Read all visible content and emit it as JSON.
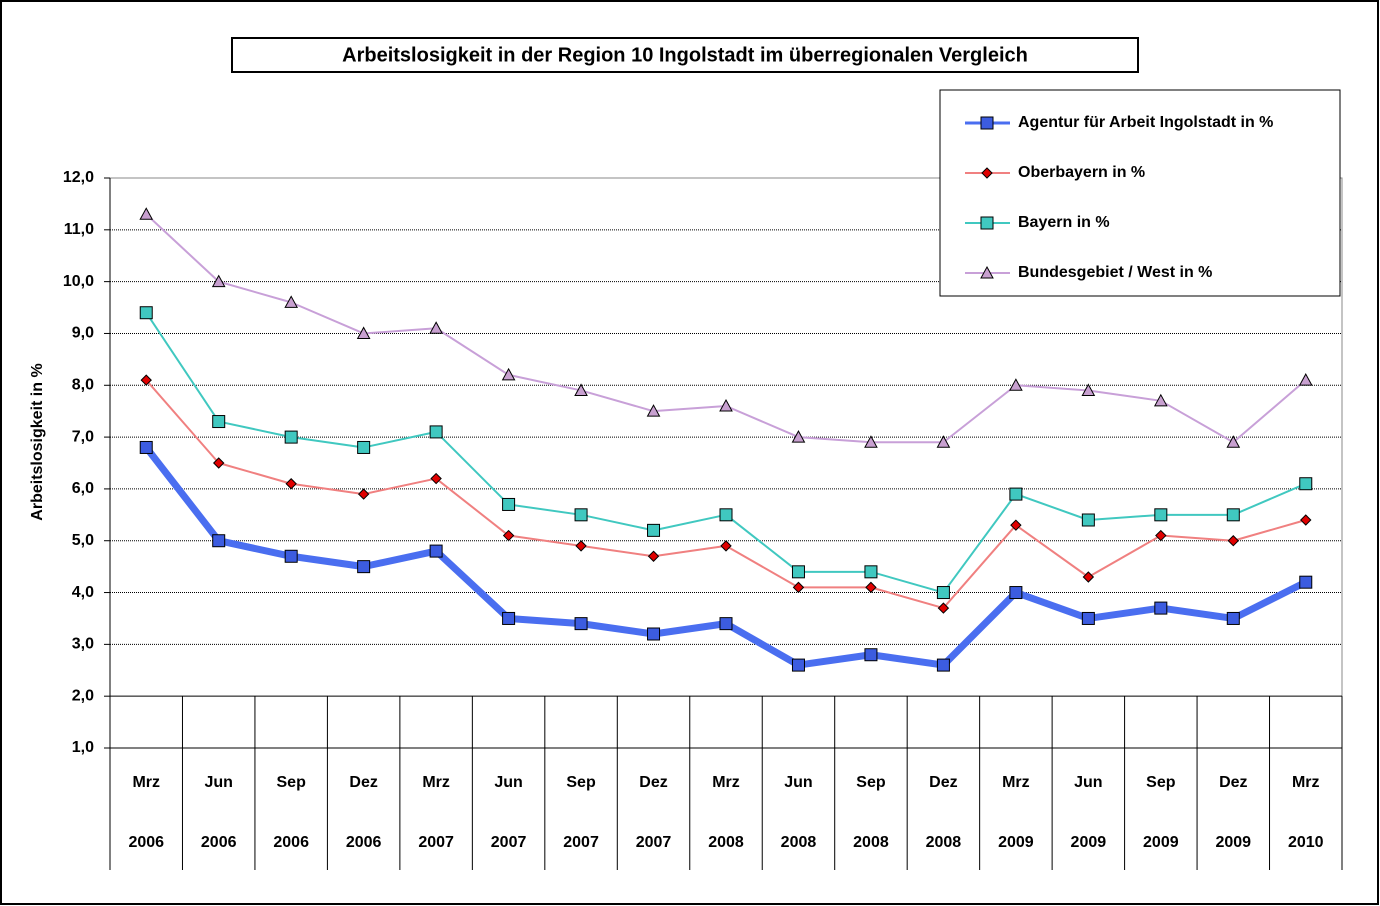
{
  "chart_data": {
    "type": "line",
    "title": "Arbeitslosigkeit in der Region 10 Ingolstadt im überregionalen Vergleich",
    "y_label": "Arbeitslosigkeit in %",
    "categories": [
      [
        "Mrz",
        "2006"
      ],
      [
        "Jun",
        "2006"
      ],
      [
        "Sep",
        "2006"
      ],
      [
        "Dez",
        "2006"
      ],
      [
        "Mrz",
        "2007"
      ],
      [
        "Jun",
        "2007"
      ],
      [
        "Sep",
        "2007"
      ],
      [
        "Dez",
        "2007"
      ],
      [
        "Mrz",
        "2008"
      ],
      [
        "Jun",
        "2008"
      ],
      [
        "Sep",
        "2008"
      ],
      [
        "Dez",
        "2008"
      ],
      [
        "Mrz",
        "2009"
      ],
      [
        "Jun",
        "2009"
      ],
      [
        "Sep",
        "2009"
      ],
      [
        "Dez",
        "2009"
      ],
      [
        "Mrz",
        "2010"
      ]
    ],
    "series": [
      {
        "name": "Agentur für Arbeit Ingolstadt in %",
        "color": "#4a6ef0",
        "marker_color": "#3c5ce0",
        "marker": "square",
        "line_width": 7,
        "values": [
          6.8,
          5.0,
          4.7,
          4.5,
          4.8,
          3.5,
          3.4,
          3.2,
          3.4,
          2.6,
          2.8,
          2.6,
          4.0,
          3.5,
          3.7,
          3.5,
          4.2
        ]
      },
      {
        "name": "Oberbayern in %",
        "color": "#f08080",
        "marker_color": "#e00000",
        "marker": "diamond",
        "line_width": 2,
        "values": [
          8.1,
          6.5,
          6.1,
          5.9,
          6.2,
          5.1,
          4.9,
          4.7,
          4.9,
          4.1,
          4.1,
          3.7,
          5.3,
          4.3,
          5.1,
          5.0,
          5.4
        ]
      },
      {
        "name": "Bayern in %",
        "color": "#40c8c0",
        "marker_color": "#40c8c0",
        "marker": "square",
        "line_width": 2,
        "values": [
          9.4,
          7.3,
          7.0,
          6.8,
          7.1,
          5.7,
          5.5,
          5.2,
          5.5,
          4.4,
          4.4,
          4.0,
          5.9,
          5.4,
          5.5,
          5.5,
          6.1
        ]
      },
      {
        "name": "Bundesgebiet / West in %",
        "color": "#c8a0d8",
        "marker_color": "#c8a0d0",
        "marker": "triangle",
        "line_width": 2,
        "values": [
          11.3,
          10.0,
          9.6,
          9.0,
          9.1,
          8.2,
          7.9,
          7.5,
          7.6,
          7.0,
          6.9,
          6.9,
          8.0,
          7.9,
          7.7,
          6.9,
          8.1
        ]
      }
    ],
    "ylim": [
      1,
      12
    ],
    "yticks": [
      {
        "value": 1,
        "label": "1,0"
      },
      {
        "value": 2,
        "label": "2,0"
      },
      {
        "value": 3,
        "label": "3,0"
      },
      {
        "value": 4,
        "label": "4,0"
      },
      {
        "value": 5,
        "label": "5,0"
      },
      {
        "value": 6,
        "label": "6,0"
      },
      {
        "value": 7,
        "label": "7,0"
      },
      {
        "value": 8,
        "label": "8,0"
      },
      {
        "value": 9,
        "label": "9,0"
      },
      {
        "value": 10,
        "label": "10,0"
      },
      {
        "value": 11,
        "label": "11,0"
      },
      {
        "value": 12,
        "label": "12,0"
      }
    ],
    "grid": true,
    "legend": "upper right"
  }
}
